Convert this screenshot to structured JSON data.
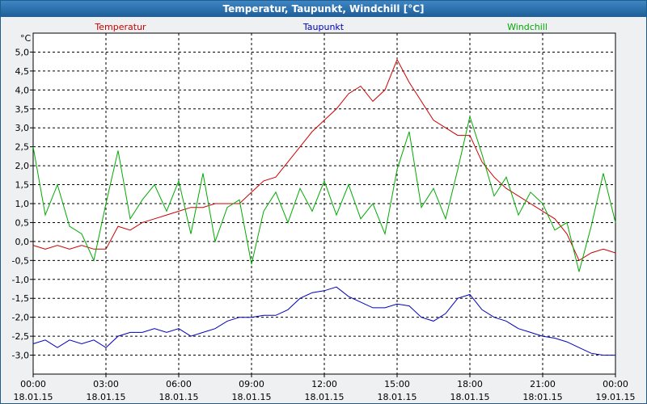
{
  "chart_data": {
    "type": "line",
    "title": "Temperatur, Taupunkt, Windchill [°C]",
    "ylabel": "°C",
    "ylim": [
      -3.5,
      5.5
    ],
    "yticks": [
      "5,0",
      "4,5",
      "4,0",
      "3,5",
      "3,0",
      "2,5",
      "2,0",
      "1,5",
      "1,0",
      "0,5",
      "0,0",
      "-0,5",
      "-1,0",
      "-1,5",
      "-2,0",
      "-2,5",
      "-3,0"
    ],
    "xticks": [
      {
        "time": "00:00",
        "date": "18.01.15"
      },
      {
        "time": "03:00",
        "date": "18.01.15"
      },
      {
        "time": "06:00",
        "date": "18.01.15"
      },
      {
        "time": "09:00",
        "date": "18.01.15"
      },
      {
        "time": "12:00",
        "date": "18.01.15"
      },
      {
        "time": "15:00",
        "date": "18.01.15"
      },
      {
        "time": "18:00",
        "date": "18.01.15"
      },
      {
        "time": "21:00",
        "date": "18:01.15"
      },
      {
        "time": "00:00",
        "date": "19.01.15"
      }
    ],
    "x_hours": [
      0,
      0.5,
      1,
      1.5,
      2,
      2.5,
      3,
      3.5,
      4,
      4.5,
      5,
      5.5,
      6,
      6.5,
      7,
      7.5,
      8,
      8.5,
      9,
      9.5,
      10,
      10.5,
      11,
      11.5,
      12,
      12.5,
      13,
      13.5,
      14,
      14.5,
      15,
      15.5,
      16,
      16.5,
      17,
      17.5,
      18,
      18.5,
      19,
      19.5,
      20,
      20.5,
      21,
      21.5,
      22,
      22.5,
      23,
      23.5,
      24
    ],
    "series": [
      {
        "name": "Temperatur",
        "color": "#cc0000",
        "values": [
          -0.1,
          -0.2,
          -0.1,
          -0.2,
          -0.1,
          -0.2,
          -0.2,
          0.4,
          0.3,
          0.5,
          0.6,
          0.7,
          0.8,
          0.9,
          0.9,
          1.0,
          1.0,
          1.0,
          1.3,
          1.6,
          1.7,
          2.1,
          2.5,
          2.9,
          3.2,
          3.5,
          3.9,
          4.1,
          3.7,
          4.0,
          4.8,
          4.2,
          3.7,
          3.2,
          3.0,
          2.8,
          2.8,
          2.1,
          1.7,
          1.4,
          1.2,
          1.0,
          0.8,
          0.6,
          0.2,
          -0.5,
          -0.3,
          -0.2,
          -0.3
        ]
      },
      {
        "name": "Taupunkt",
        "color": "#0000bb",
        "values": [
          -2.7,
          -2.6,
          -2.8,
          -2.6,
          -2.7,
          -2.6,
          -2.8,
          -2.5,
          -2.4,
          -2.4,
          -2.3,
          -2.4,
          -2.3,
          -2.5,
          -2.4,
          -2.3,
          -2.1,
          -2.0,
          -2.0,
          -1.95,
          -1.95,
          -1.8,
          -1.5,
          -1.35,
          -1.3,
          -1.2,
          -1.45,
          -1.6,
          -1.75,
          -1.75,
          -1.65,
          -1.7,
          -2.0,
          -2.1,
          -1.9,
          -1.5,
          -1.4,
          -1.8,
          -2.0,
          -2.1,
          -2.3,
          -2.4,
          -2.5,
          -2.55,
          -2.65,
          -2.8,
          -2.95,
          -3.0,
          -3.0
        ]
      },
      {
        "name": "Windchill",
        "color": "#00aa00",
        "values": [
          2.5,
          0.7,
          1.5,
          0.4,
          0.2,
          -0.5,
          1.0,
          2.4,
          0.6,
          1.1,
          1.5,
          0.8,
          1.6,
          0.2,
          1.8,
          0.0,
          0.9,
          1.1,
          -0.6,
          0.8,
          1.3,
          0.5,
          1.4,
          0.8,
          1.6,
          0.7,
          1.5,
          0.6,
          1.0,
          0.2,
          1.9,
          2.9,
          0.9,
          1.4,
          0.6,
          1.9,
          3.3,
          2.3,
          1.2,
          1.7,
          0.7,
          1.3,
          1.0,
          0.3,
          0.5,
          -0.8,
          0.4,
          1.8,
          0.5
        ]
      }
    ]
  }
}
